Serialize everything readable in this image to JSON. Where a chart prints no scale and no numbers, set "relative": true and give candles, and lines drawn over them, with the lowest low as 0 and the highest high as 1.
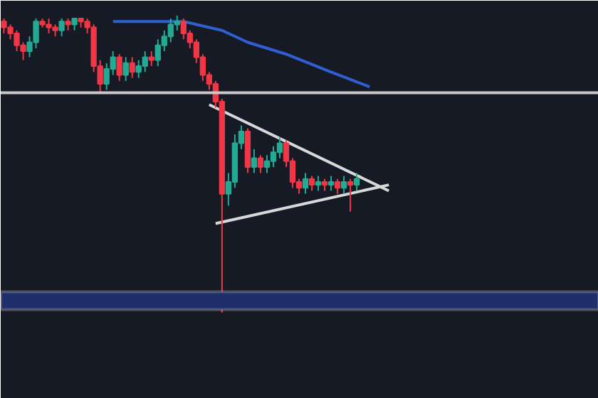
{
  "chart_data": {
    "type": "candlestick",
    "relative": true,
    "tick_labels": false,
    "categories": [
      null,
      null,
      null,
      null,
      null,
      null,
      null,
      null,
      null,
      null,
      null,
      null,
      null,
      null,
      null,
      null,
      null,
      null,
      null,
      null,
      null,
      null,
      null,
      null,
      null,
      null,
      null,
      null,
      null,
      null,
      null,
      null,
      null,
      null,
      null,
      null,
      null,
      null,
      null,
      null,
      null,
      null,
      null,
      null,
      null,
      null,
      null,
      null,
      null,
      null,
      null,
      null,
      null,
      null,
      null,
      null,
      null,
      null,
      null,
      null,
      null
    ],
    "ohlc": [
      [
        0.98,
        0.99,
        0.94,
        0.96
      ],
      [
        0.96,
        0.97,
        0.92,
        0.94
      ],
      [
        0.94,
        0.95,
        0.88,
        0.9
      ],
      [
        0.9,
        0.91,
        0.85,
        0.88
      ],
      [
        0.88,
        0.93,
        0.86,
        0.91
      ],
      [
        0.91,
        0.99,
        0.89,
        0.98
      ],
      [
        0.98,
        0.99,
        0.96,
        0.97
      ],
      [
        0.97,
        0.99,
        0.94,
        0.96
      ],
      [
        0.96,
        0.97,
        0.93,
        0.95
      ],
      [
        0.95,
        0.99,
        0.93,
        0.98
      ],
      [
        0.98,
        0.99,
        0.95,
        0.97
      ],
      [
        0.97,
        0.99,
        0.95,
        0.99
      ],
      [
        0.99,
        0.99,
        0.96,
        0.98
      ],
      [
        0.98,
        0.99,
        0.94,
        0.96
      ],
      [
        0.96,
        0.97,
        0.81,
        0.83
      ],
      [
        0.83,
        0.85,
        0.74,
        0.77
      ],
      [
        0.77,
        0.84,
        0.75,
        0.82
      ],
      [
        0.82,
        0.88,
        0.8,
        0.86
      ],
      [
        0.86,
        0.87,
        0.78,
        0.8
      ],
      [
        0.8,
        0.86,
        0.78,
        0.84
      ],
      [
        0.84,
        0.86,
        0.79,
        0.81
      ],
      [
        0.81,
        0.85,
        0.79,
        0.83
      ],
      [
        0.83,
        0.88,
        0.81,
        0.86
      ],
      [
        0.86,
        0.88,
        0.83,
        0.85
      ],
      [
        0.85,
        0.92,
        0.83,
        0.9
      ],
      [
        0.9,
        0.95,
        0.88,
        0.93
      ],
      [
        0.93,
        0.99,
        0.91,
        0.97
      ],
      [
        0.97,
        1.0,
        0.95,
        0.98
      ],
      [
        0.98,
        0.99,
        0.92,
        0.94
      ],
      [
        0.94,
        0.95,
        0.89,
        0.91
      ],
      [
        0.91,
        0.92,
        0.84,
        0.86
      ],
      [
        0.86,
        0.87,
        0.78,
        0.8
      ],
      [
        0.8,
        0.81,
        0.75,
        0.77
      ],
      [
        0.77,
        0.78,
        0.69,
        0.71
      ],
      [
        0.71,
        0.72,
        0.0,
        0.4
      ],
      [
        0.4,
        0.47,
        0.36,
        0.44
      ],
      [
        0.44,
        0.6,
        0.42,
        0.57
      ],
      [
        0.57,
        0.63,
        0.55,
        0.61
      ],
      [
        0.61,
        0.62,
        0.47,
        0.49
      ],
      [
        0.49,
        0.55,
        0.47,
        0.52
      ],
      [
        0.52,
        0.53,
        0.47,
        0.49
      ],
      [
        0.49,
        0.53,
        0.47,
        0.51
      ],
      [
        0.51,
        0.56,
        0.49,
        0.54
      ],
      [
        0.54,
        0.59,
        0.52,
        0.57
      ],
      [
        0.57,
        0.58,
        0.49,
        0.51
      ],
      [
        0.51,
        0.52,
        0.42,
        0.44
      ],
      [
        0.44,
        0.45,
        0.4,
        0.42
      ],
      [
        0.42,
        0.47,
        0.4,
        0.45
      ],
      [
        0.45,
        0.46,
        0.41,
        0.43
      ],
      [
        0.43,
        0.46,
        0.41,
        0.44
      ],
      [
        0.44,
        0.45,
        0.41,
        0.43
      ],
      [
        0.43,
        0.46,
        0.41,
        0.44
      ],
      [
        0.44,
        0.45,
        0.4,
        0.42
      ],
      [
        0.42,
        0.46,
        0.4,
        0.44
      ],
      [
        0.44,
        0.45,
        0.34,
        0.43
      ],
      [
        0.43,
        0.47,
        0.41,
        0.45
      ],
      null,
      null,
      null,
      null,
      null
    ],
    "colors": [
      "#f23645",
      "#f23645",
      "#f23645",
      "#f23645",
      "#22ab94",
      "#22ab94",
      "#f23645",
      "#f23645",
      "#f23645",
      "#22ab94",
      "#f23645",
      "#22ab94",
      "#f23645",
      "#f23645",
      "#f23645",
      "#f23645",
      "#22ab94",
      "#22ab94",
      "#f23645",
      "#22ab94",
      "#f23645",
      "#22ab94",
      "#22ab94",
      "#f23645",
      "#22ab94",
      "#22ab94",
      "#22ab94",
      "#22ab94",
      "#f23645",
      "#f23645",
      "#f23645",
      "#f23645",
      "#f23645",
      "#f23645",
      "#f23645",
      "#22ab94",
      "#22ab94",
      "#22ab94",
      "#f23645",
      "#22ab94",
      "#f23645",
      "#22ab94",
      "#22ab94",
      "#22ab94",
      "#f23645",
      "#f23645",
      "#f23645",
      "#22ab94",
      "#f23645",
      "#22ab94",
      "#f23645",
      "#22ab94",
      "#f23645",
      "#22ab94",
      "#f23645",
      "#22ab94",
      null,
      null,
      null,
      null,
      null
    ],
    "series": [
      {
        "type": "line",
        "color": "#2f5fd0",
        "values": [
          null,
          null,
          null,
          null,
          null,
          null,
          null,
          null,
          null,
          null,
          null,
          null,
          null,
          null,
          null,
          null,
          null,
          0.98,
          null,
          null,
          null,
          null,
          0.98,
          null,
          null,
          null,
          null,
          null,
          0.98,
          null,
          null,
          null,
          null,
          null,
          0.95,
          null,
          null,
          null,
          0.91,
          null,
          null,
          null,
          null,
          null,
          0.87,
          null,
          null,
          null,
          null,
          null,
          null,
          0.81,
          null,
          null,
          null,
          null,
          null,
          0.76,
          null,
          null,
          null
        ]
      },
      {
        "type": "line",
        "color": "#d8d8d8",
        "values": [
          null,
          null,
          null,
          null,
          null,
          null,
          null,
          null,
          null,
          null,
          null,
          null,
          null,
          null,
          null,
          null,
          null,
          null,
          null,
          null,
          null,
          null,
          null,
          null,
          null,
          null,
          null,
          null,
          null,
          null,
          null,
          null,
          0.7,
          null,
          null,
          null,
          null,
          null,
          null,
          null,
          null,
          null,
          null,
          null,
          null,
          null,
          null,
          null,
          null,
          null,
          null,
          null,
          null,
          null,
          null,
          null,
          null,
          null,
          null,
          null,
          0.41
        ]
      },
      {
        "type": "line",
        "color": "#d8d8d8",
        "values": [
          null,
          null,
          null,
          null,
          null,
          null,
          null,
          null,
          null,
          null,
          null,
          null,
          null,
          null,
          null,
          null,
          null,
          null,
          null,
          null,
          null,
          null,
          null,
          null,
          null,
          null,
          null,
          null,
          null,
          null,
          null,
          null,
          null,
          0.3,
          null,
          null,
          null,
          null,
          null,
          null,
          null,
          null,
          null,
          null,
          null,
          null,
          null,
          null,
          null,
          null,
          null,
          null,
          null,
          null,
          null,
          null,
          null,
          null,
          null,
          null,
          0.43
        ]
      }
    ],
    "ref_lines": [
      {
        "axis": "y",
        "value": 0.74,
        "color": "#c8c8c8"
      }
    ],
    "bands": [
      {
        "axis": "y",
        "from": 0.01,
        "to": 0.07,
        "color": "#1e2f6b"
      }
    ]
  }
}
